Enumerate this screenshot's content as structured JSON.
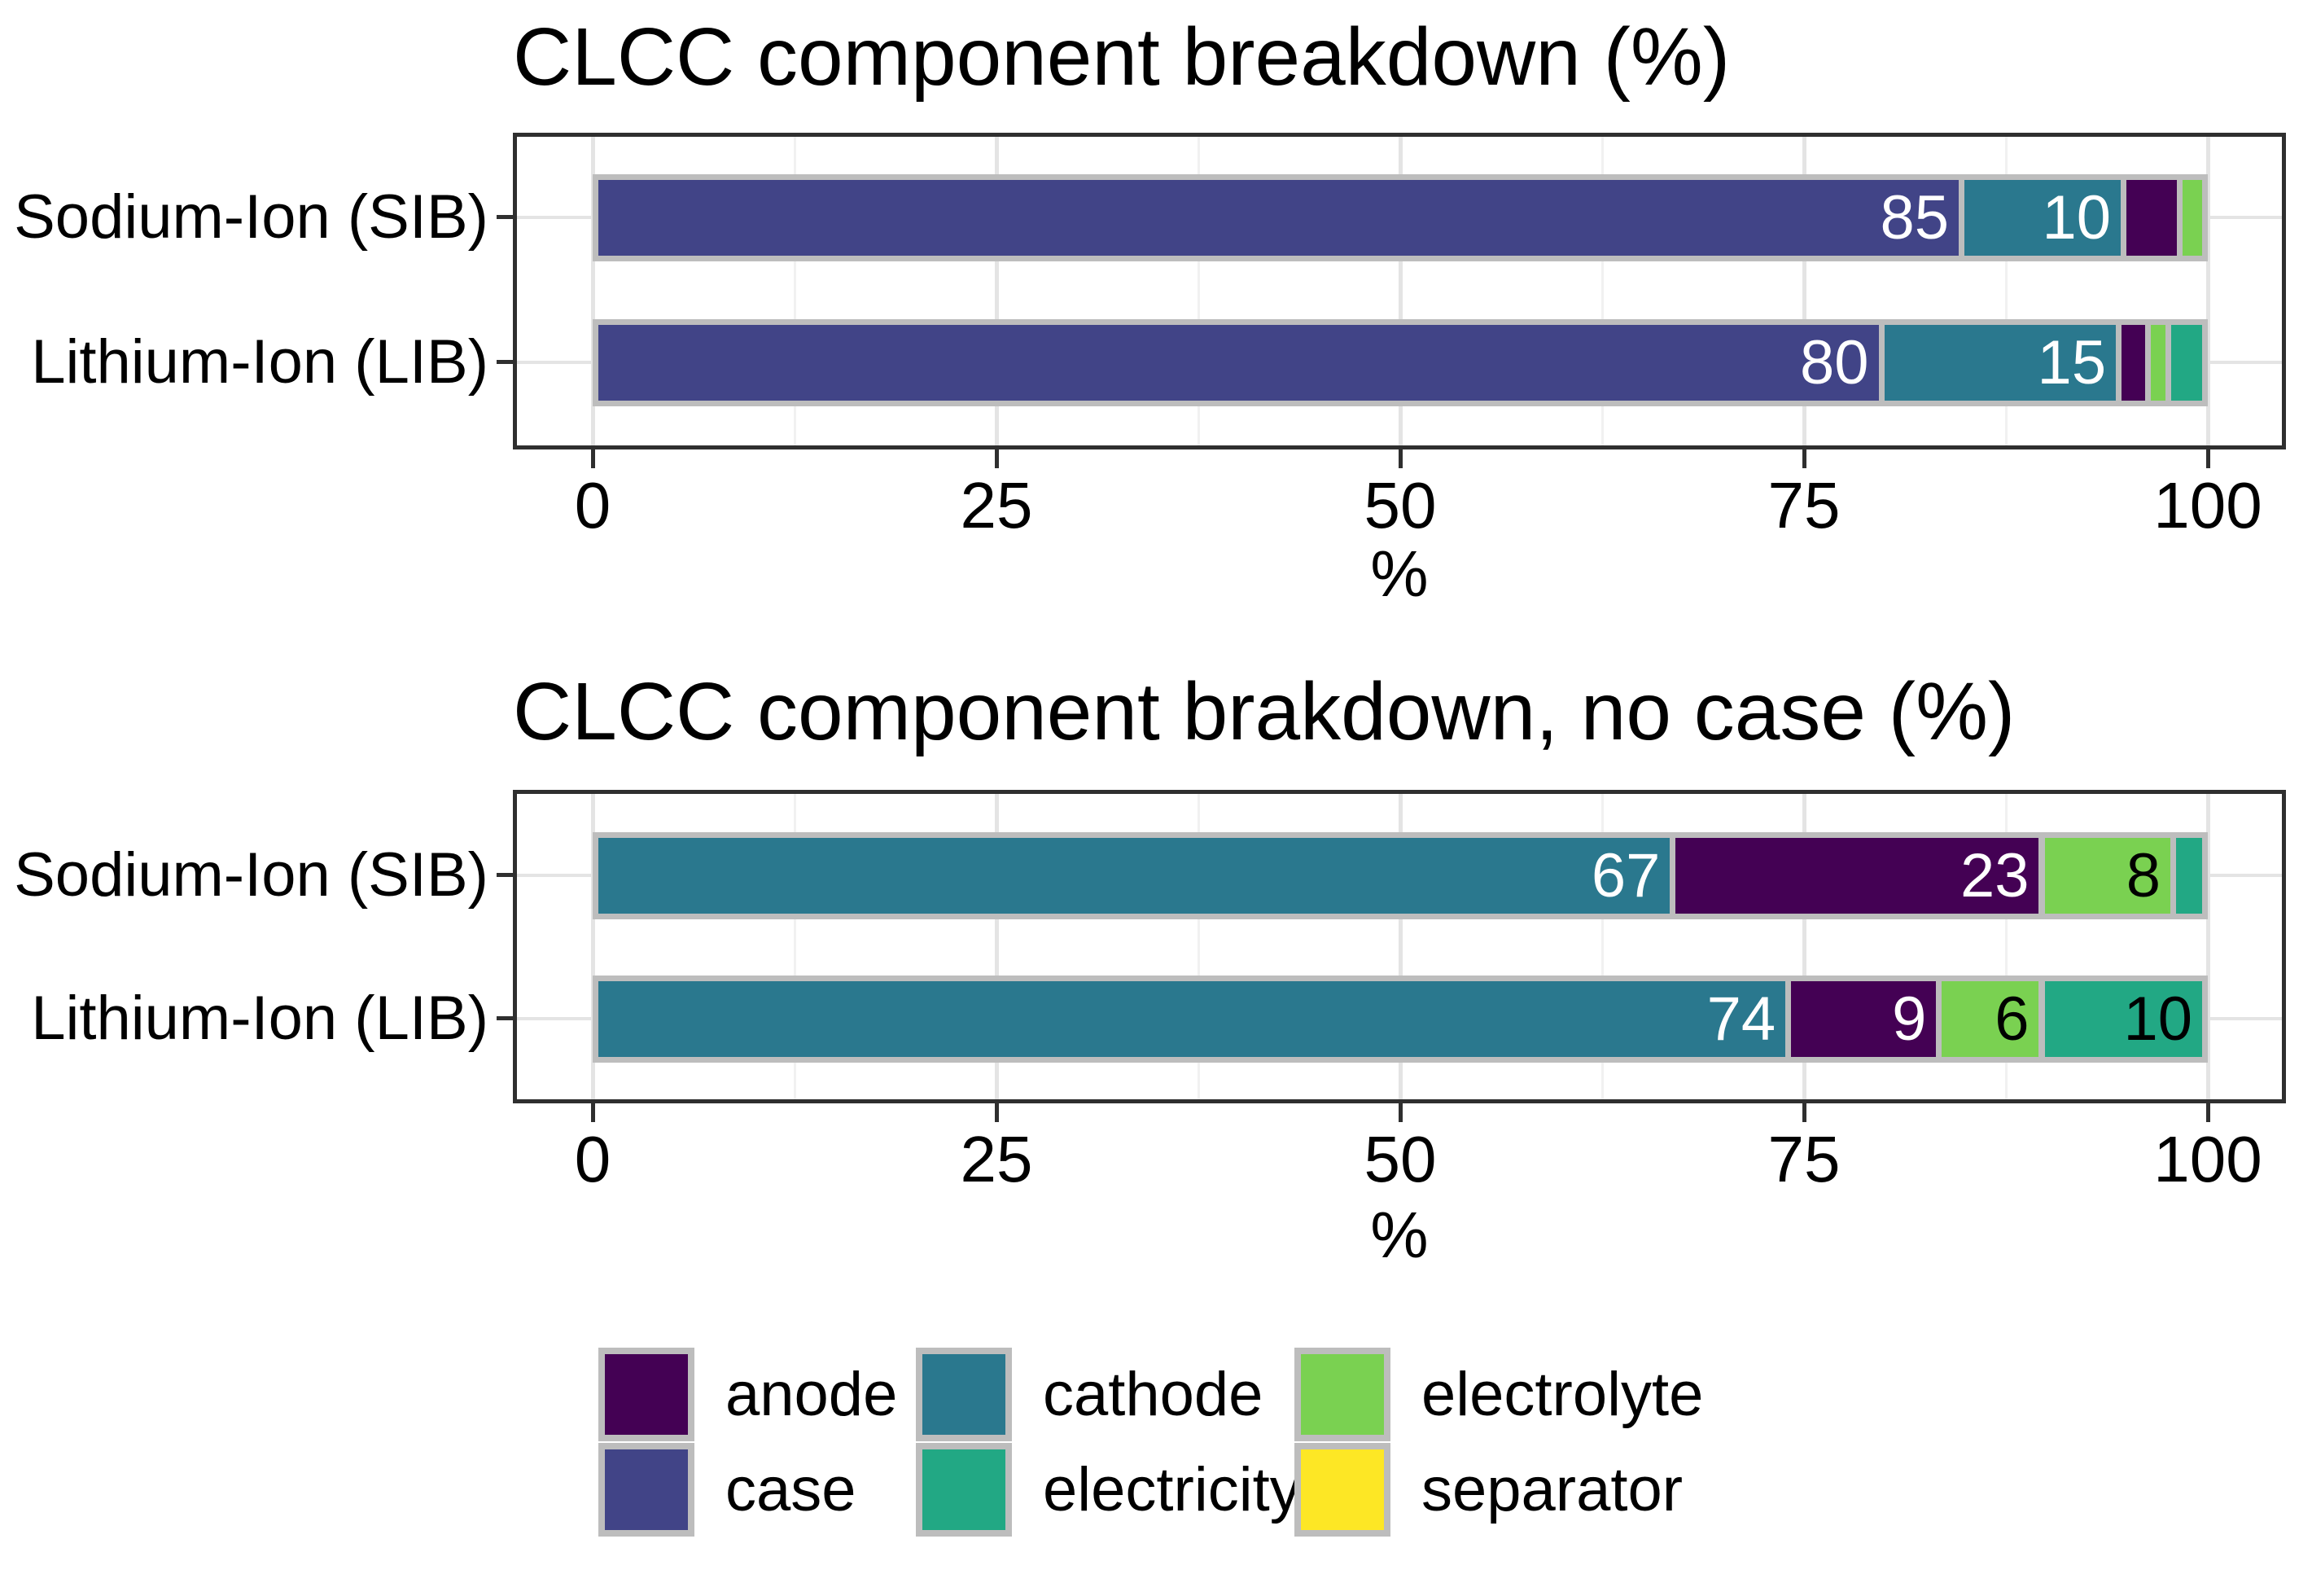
{
  "palette": {
    "anode": "#440154",
    "case": "#414487",
    "cathode": "#2A788E",
    "electricity": "#22A884",
    "electrolyte": "#7AD151",
    "separator": "#FDE725"
  },
  "style": {
    "background": "#FFFFFF",
    "bar_outline": "#BDBDBD",
    "panel_border": "#2F2F2F",
    "grid_major": "#E4E4E4",
    "grid_minor": "#F1F1F1",
    "text": "#000000",
    "bar_label_light": "#FFFFFF",
    "bar_label_dark": "#000000"
  },
  "chart_data": [
    {
      "type": "bar",
      "orientation": "horizontal",
      "stacked": true,
      "title": "CLCC component breakdown (%)",
      "xlabel": "%",
      "xlim": [
        0,
        100
      ],
      "x_major_values": [
        0,
        25,
        50,
        75,
        100
      ],
      "x_tick_labels": [
        "0",
        "25",
        "50",
        "75",
        "100"
      ],
      "x_minor_values": [
        12.5,
        37.5,
        62.5,
        87.5
      ],
      "grid": "on",
      "categories": [
        "Sodium-Ion (SIB)",
        "Lithium-Ion (LIB)"
      ],
      "rows": [
        {
          "category": "Sodium-Ion (SIB)",
          "segments": [
            {
              "name": "case",
              "value": 85,
              "label": "85",
              "label_style": "light"
            },
            {
              "name": "cathode",
              "value": 10.1,
              "label": "10",
              "label_style": "light"
            },
            {
              "name": "anode",
              "value": 3.5,
              "label": "",
              "label_style": ""
            },
            {
              "name": "electrolyte",
              "value": 1.4,
              "label": "",
              "label_style": ""
            }
          ]
        },
        {
          "category": "Lithium-Ion (LIB)",
          "segments": [
            {
              "name": "case",
              "value": 80,
              "label": "80",
              "label_style": "light"
            },
            {
              "name": "cathode",
              "value": 14.8,
              "label": "15",
              "label_style": "light"
            },
            {
              "name": "anode",
              "value": 1.8,
              "label": "",
              "label_style": ""
            },
            {
              "name": "electrolyte",
              "value": 1.3,
              "label": "",
              "label_style": ""
            },
            {
              "name": "electricity",
              "value": 2.1,
              "label": "",
              "label_style": ""
            }
          ]
        }
      ]
    },
    {
      "type": "bar",
      "orientation": "horizontal",
      "stacked": true,
      "title": "CLCC component brakdown, no case (%)",
      "xlabel": "%",
      "xlim": [
        0,
        100
      ],
      "x_major_values": [
        0,
        25,
        50,
        75,
        100
      ],
      "x_tick_labels": [
        "0",
        "25",
        "50",
        "75",
        "100"
      ],
      "x_minor_values": [
        12.5,
        37.5,
        62.5,
        87.5
      ],
      "grid": "on",
      "categories": [
        "Sodium-Ion (SIB)",
        "Lithium-Ion (LIB)"
      ],
      "rows": [
        {
          "category": "Sodium-Ion (SIB)",
          "segments": [
            {
              "name": "cathode",
              "value": 67,
              "label": "67",
              "label_style": "light"
            },
            {
              "name": "anode",
              "value": 23,
              "label": "23",
              "label_style": "light"
            },
            {
              "name": "electrolyte",
              "value": 8.2,
              "label": "8",
              "label_style": "dark"
            },
            {
              "name": "electricity",
              "value": 1.8,
              "label": "",
              "label_style": ""
            }
          ]
        },
        {
          "category": "Lithium-Ion (LIB)",
          "segments": [
            {
              "name": "cathode",
              "value": 74.2,
              "label": "74",
              "label_style": "light"
            },
            {
              "name": "anode",
              "value": 9.4,
              "label": "9",
              "label_style": "light"
            },
            {
              "name": "electrolyte",
              "value": 6.4,
              "label": "6",
              "label_style": "dark"
            },
            {
              "name": "electricity",
              "value": 10,
              "label": "10",
              "label_style": "dark"
            }
          ]
        }
      ]
    }
  ],
  "legend": {
    "rows": 2,
    "columns": 3,
    "fill_order": "column",
    "items": [
      {
        "name": "anode",
        "label": "anode"
      },
      {
        "name": "case",
        "label": "case"
      },
      {
        "name": "cathode",
        "label": "cathode"
      },
      {
        "name": "electricity",
        "label": "electricity"
      },
      {
        "name": "electrolyte",
        "label": "electrolyte"
      },
      {
        "name": "separator",
        "label": "separator"
      }
    ]
  }
}
